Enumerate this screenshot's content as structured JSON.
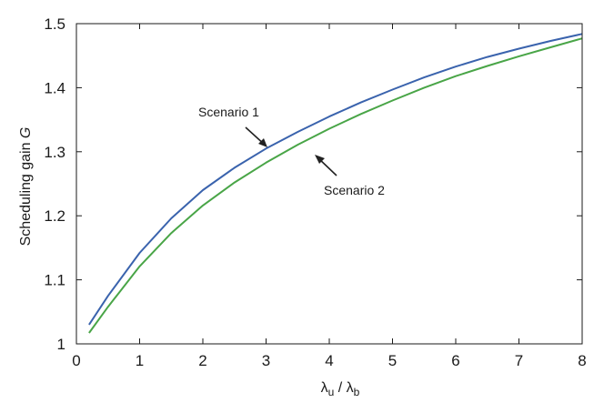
{
  "chart_data": {
    "type": "line",
    "xlabel": {
      "base": "λ",
      "sub_u": "u",
      "sep": " / ",
      "sub_b": "b"
    },
    "ylabel": {
      "text": "Scheduling gain ",
      "var": "G"
    },
    "xlim": [
      0,
      8
    ],
    "ylim": [
      1,
      1.5
    ],
    "xticks": [
      "0",
      "1",
      "2",
      "3",
      "4",
      "5",
      "6",
      "7",
      "8"
    ],
    "yticks": [
      "1",
      "1.1",
      "1.2",
      "1.3",
      "1.4",
      "1.5"
    ],
    "grid": false,
    "series": [
      {
        "name": "Scenario 1",
        "color": "#3a63ad",
        "x": [
          0.2,
          0.5,
          1,
          1.5,
          2,
          2.5,
          3,
          3.5,
          4,
          4.5,
          5,
          5.5,
          6,
          6.5,
          7,
          7.5,
          8
        ],
        "y": [
          1.03,
          1.075,
          1.142,
          1.196,
          1.24,
          1.275,
          1.305,
          1.331,
          1.355,
          1.377,
          1.397,
          1.416,
          1.433,
          1.448,
          1.461,
          1.473,
          1.484
        ]
      },
      {
        "name": "Scenario 2",
        "color": "#49a547",
        "x": [
          0.2,
          0.5,
          1,
          1.5,
          2,
          2.5,
          3,
          3.5,
          4,
          4.5,
          5,
          5.5,
          6,
          6.5,
          7,
          7.5,
          8
        ],
        "y": [
          1.017,
          1.058,
          1.121,
          1.173,
          1.216,
          1.252,
          1.283,
          1.311,
          1.336,
          1.359,
          1.38,
          1.4,
          1.418,
          1.434,
          1.449,
          1.463,
          1.477
        ]
      }
    ],
    "annotations": [
      {
        "text": "Scenario 1",
        "series": "Scenario 1"
      },
      {
        "text": "Scenario 2",
        "series": "Scenario 2"
      }
    ]
  }
}
